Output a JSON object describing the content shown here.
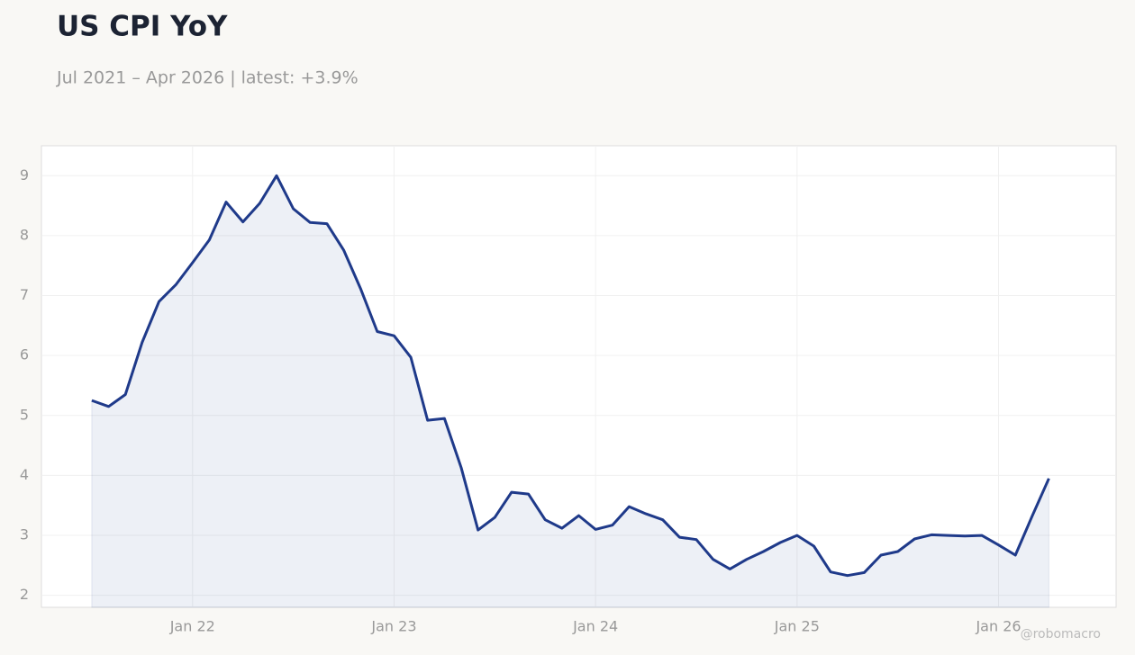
{
  "chart_data": {
    "type": "line",
    "title": "US CPI YoY",
    "subtitle": "Jul 2021 – Apr 2026 | latest: +3.9%",
    "watermark": "@robomacro",
    "x": [
      "2021-07",
      "2021-08",
      "2021-09",
      "2021-10",
      "2021-11",
      "2021-12",
      "2022-01",
      "2022-02",
      "2022-03",
      "2022-04",
      "2022-05",
      "2022-06",
      "2022-07",
      "2022-08",
      "2022-09",
      "2022-10",
      "2022-11",
      "2022-12",
      "2023-01",
      "2023-02",
      "2023-03",
      "2023-04",
      "2023-05",
      "2023-06",
      "2023-07",
      "2023-08",
      "2023-09",
      "2023-10",
      "2023-11",
      "2023-12",
      "2024-01",
      "2024-02",
      "2024-03",
      "2024-04",
      "2024-05",
      "2024-06",
      "2024-07",
      "2024-08",
      "2024-09",
      "2024-10",
      "2024-11",
      "2024-12",
      "2025-01",
      "2025-02",
      "2025-03",
      "2025-04",
      "2025-05",
      "2025-06",
      "2025-07",
      "2025-08",
      "2025-09",
      "2025-10",
      "2025-11",
      "2025-12",
      "2026-01",
      "2026-02",
      "2026-03",
      "2026-04"
    ],
    "series": [
      {
        "name": "US CPI YoY",
        "color": "#1f3a8a",
        "values": [
          5.25,
          5.15,
          5.35,
          6.22,
          6.9,
          7.18,
          7.55,
          7.93,
          8.56,
          8.23,
          8.54,
          9.0,
          8.45,
          8.22,
          8.2,
          7.76,
          7.12,
          6.4,
          6.33,
          5.97,
          4.92,
          4.95,
          4.13,
          3.09,
          3.3,
          3.72,
          3.69,
          3.26,
          3.12,
          3.33,
          3.1,
          3.17,
          3.48,
          3.36,
          3.26,
          2.97,
          2.93,
          2.6,
          2.44,
          2.6,
          2.73,
          2.88,
          3.0,
          2.82,
          2.39,
          2.33,
          2.38,
          2.67,
          2.73,
          2.94,
          3.01,
          3.0,
          2.99,
          3.0,
          2.84,
          2.67,
          3.32,
          3.95
        ]
      }
    ],
    "xlim": [
      "2021-04",
      "2026-08"
    ],
    "xticks": [
      {
        "value": "2022-01",
        "label": "Jan 22"
      },
      {
        "value": "2023-01",
        "label": "Jan 23"
      },
      {
        "value": "2024-01",
        "label": "Jan 24"
      },
      {
        "value": "2025-01",
        "label": "Jan 25"
      },
      {
        "value": "2026-01",
        "label": "Jan 26"
      }
    ],
    "ylim": [
      1.8,
      9.5
    ],
    "yticks": [
      2,
      3,
      4,
      5,
      6,
      7,
      8,
      9
    ],
    "grid": true,
    "fill": true
  }
}
